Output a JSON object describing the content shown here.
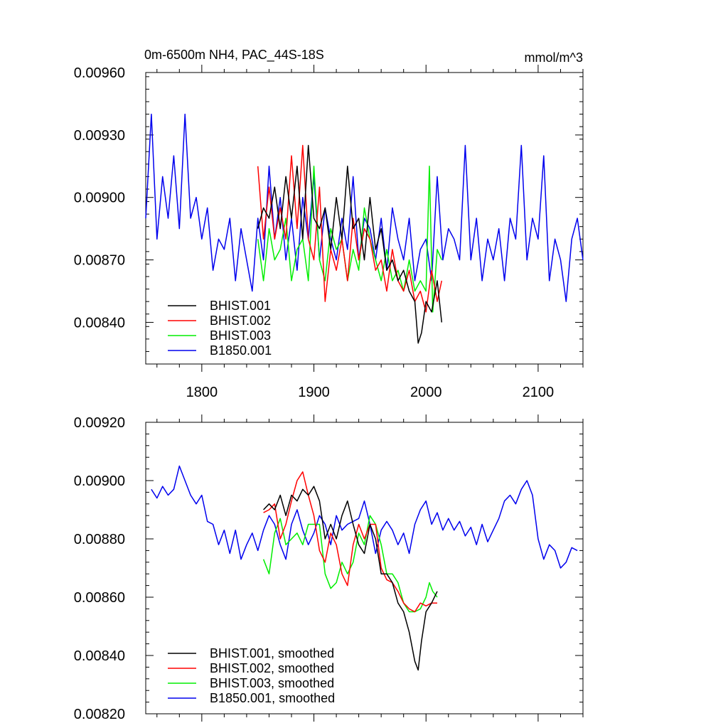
{
  "chart_data": [
    {
      "type": "line",
      "title": "0m-6500m NH4, PAC_44S-18S",
      "units": "mmol/m^3",
      "xlim": [
        1750,
        2140
      ],
      "ylim": [
        0.0082,
        0.0096
      ],
      "xticks": [
        1800,
        1900,
        2000,
        2100
      ],
      "xtick_labels": [
        "1800",
        "1900",
        "2000",
        "2100"
      ],
      "yticks": [
        0.0084,
        0.0087,
        0.009,
        0.0093,
        0.0096
      ],
      "ytick_labels": [
        "0.00840",
        "0.00870",
        "0.00900",
        "0.00930",
        "0.00960"
      ],
      "legend_position": "bottom-left",
      "series": [
        {
          "name": "BHIST.001",
          "color": "#000000",
          "x": [
            1850,
            1855,
            1860,
            1865,
            1870,
            1875,
            1880,
            1885,
            1890,
            1895,
            1900,
            1905,
            1910,
            1915,
            1920,
            1925,
            1930,
            1935,
            1940,
            1945,
            1950,
            1955,
            1960,
            1965,
            1970,
            1975,
            1980,
            1985,
            1990,
            1993,
            1996,
            2000,
            2005,
            2010,
            2014
          ],
          "y": [
            0.00885,
            0.00895,
            0.0089,
            0.00905,
            0.00885,
            0.0091,
            0.0089,
            0.00915,
            0.0088,
            0.00925,
            0.0089,
            0.00885,
            0.00895,
            0.00875,
            0.009,
            0.0088,
            0.00915,
            0.00885,
            0.0089,
            0.0087,
            0.009,
            0.00875,
            0.00885,
            0.00865,
            0.0087,
            0.0086,
            0.00865,
            0.00855,
            0.0085,
            0.0083,
            0.00835,
            0.0085,
            0.00845,
            0.0086,
            0.0084
          ]
        },
        {
          "name": "BHIST.002",
          "color": "#ff0000",
          "x": [
            1850,
            1855,
            1860,
            1865,
            1870,
            1875,
            1880,
            1885,
            1890,
            1895,
            1900,
            1905,
            1910,
            1915,
            1920,
            1925,
            1930,
            1935,
            1940,
            1945,
            1950,
            1955,
            1960,
            1965,
            1970,
            1975,
            1980,
            1985,
            1990,
            1995,
            2000,
            2005,
            2010,
            2014
          ],
          "y": [
            0.00915,
            0.0088,
            0.00905,
            0.0088,
            0.00895,
            0.0088,
            0.0092,
            0.00885,
            0.00925,
            0.0088,
            0.0087,
            0.00905,
            0.0085,
            0.00875,
            0.00865,
            0.0088,
            0.0086,
            0.0089,
            0.0087,
            0.00885,
            0.0088,
            0.00865,
            0.0087,
            0.00855,
            0.00875,
            0.0086,
            0.00855,
            0.00865,
            0.0085,
            0.00855,
            0.00845,
            0.00865,
            0.0085,
            0.0086
          ]
        },
        {
          "name": "BHIST.003",
          "color": "#00ee00",
          "x": [
            1850,
            1855,
            1860,
            1865,
            1870,
            1875,
            1880,
            1885,
            1890,
            1895,
            1900,
            1905,
            1910,
            1915,
            1920,
            1925,
            1930,
            1935,
            1940,
            1945,
            1950,
            1955,
            1960,
            1965,
            1970,
            1975,
            1980,
            1985,
            1990,
            1995,
            2000,
            2003,
            2006,
            2010,
            2014
          ],
          "y": [
            0.0088,
            0.0086,
            0.00885,
            0.0087,
            0.00875,
            0.0089,
            0.0086,
            0.00875,
            0.0088,
            0.0086,
            0.00915,
            0.0087,
            0.0086,
            0.00885,
            0.00875,
            0.0088,
            0.0086,
            0.00875,
            0.00865,
            0.00895,
            0.0088,
            0.0087,
            0.0086,
            0.00875,
            0.0086,
            0.00865,
            0.00855,
            0.0087,
            0.00855,
            0.0086,
            0.00855,
            0.00915,
            0.00845,
            0.00875,
            0.0087
          ]
        },
        {
          "name": "B1850.001",
          "color": "#0000ee",
          "x": [
            1750,
            1755,
            1760,
            1765,
            1770,
            1775,
            1780,
            1785,
            1790,
            1795,
            1800,
            1805,
            1810,
            1815,
            1820,
            1825,
            1830,
            1835,
            1840,
            1845,
            1850,
            1855,
            1860,
            1865,
            1870,
            1875,
            1880,
            1885,
            1890,
            1895,
            1900,
            1905,
            1910,
            1915,
            1920,
            1925,
            1930,
            1935,
            1940,
            1945,
            1950,
            1955,
            1960,
            1965,
            1970,
            1975,
            1980,
            1985,
            1990,
            1995,
            2000,
            2005,
            2010,
            2015,
            2020,
            2025,
            2030,
            2035,
            2040,
            2045,
            2050,
            2055,
            2060,
            2065,
            2070,
            2075,
            2080,
            2085,
            2090,
            2095,
            2100,
            2105,
            2110,
            2115,
            2120,
            2125,
            2130,
            2135,
            2140
          ],
          "y": [
            0.0089,
            0.0094,
            0.0088,
            0.0091,
            0.0089,
            0.0092,
            0.00885,
            0.0094,
            0.0089,
            0.009,
            0.0088,
            0.00895,
            0.00865,
            0.0088,
            0.00875,
            0.0089,
            0.0086,
            0.00885,
            0.0087,
            0.00855,
            0.0089,
            0.0087,
            0.00915,
            0.0088,
            0.009,
            0.0087,
            0.0089,
            0.00865,
            0.009,
            0.0088,
            0.0091,
            0.0087,
            0.00895,
            0.0088,
            0.0087,
            0.0089,
            0.00875,
            0.0091,
            0.0087,
            0.0089,
            0.00885,
            0.0087,
            0.0089,
            0.00865,
            0.00895,
            0.0088,
            0.0087,
            0.0089,
            0.0086,
            0.00875,
            0.0088,
            0.0086,
            0.0091,
            0.0087,
            0.00885,
            0.0088,
            0.0087,
            0.00925,
            0.0087,
            0.0089,
            0.0086,
            0.0088,
            0.0087,
            0.00885,
            0.0086,
            0.0089,
            0.0088,
            0.00925,
            0.0087,
            0.0089,
            0.0088,
            0.0092,
            0.0086,
            0.0088,
            0.0087,
            0.0085,
            0.0088,
            0.0089,
            0.0087
          ]
        }
      ]
    },
    {
      "type": "line",
      "title": "",
      "xlim": [
        1750,
        2140
      ],
      "ylim": [
        0.0082,
        0.0092
      ],
      "xticks": [
        1800,
        1900,
        2000,
        2100
      ],
      "xtick_labels": [],
      "yticks": [
        0.0082,
        0.0084,
        0.0086,
        0.0088,
        0.009,
        0.0092
      ],
      "ytick_labels": [
        "0.00820",
        "0.00840",
        "0.00860",
        "0.00880",
        "0.00900",
        "0.00920"
      ],
      "legend_position": "bottom-left",
      "series": [
        {
          "name": "BHIST.001, smoothed",
          "color": "#000000",
          "x": [
            1855,
            1860,
            1865,
            1870,
            1875,
            1880,
            1885,
            1890,
            1895,
            1900,
            1905,
            1910,
            1915,
            1920,
            1925,
            1930,
            1935,
            1940,
            1945,
            1950,
            1955,
            1960,
            1965,
            1970,
            1975,
            1980,
            1985,
            1990,
            1993,
            1996,
            2000,
            2005,
            2010
          ],
          "y": [
            0.0089,
            0.00892,
            0.0089,
            0.00895,
            0.00888,
            0.00895,
            0.00893,
            0.00897,
            0.00895,
            0.00898,
            0.00893,
            0.0088,
            0.00885,
            0.0088,
            0.00888,
            0.00893,
            0.00885,
            0.00878,
            0.00875,
            0.00885,
            0.0088,
            0.00868,
            0.00868,
            0.00865,
            0.00858,
            0.00855,
            0.00848,
            0.00838,
            0.00835,
            0.00845,
            0.00855,
            0.00858,
            0.00862
          ]
        },
        {
          "name": "BHIST.002, smoothed",
          "color": "#ff0000",
          "x": [
            1855,
            1860,
            1865,
            1870,
            1875,
            1880,
            1885,
            1890,
            1895,
            1900,
            1905,
            1910,
            1915,
            1920,
            1925,
            1930,
            1935,
            1940,
            1945,
            1950,
            1955,
            1960,
            1965,
            1970,
            1975,
            1980,
            1985,
            1990,
            1995,
            2000,
            2005,
            2010
          ],
          "y": [
            0.00889,
            0.0089,
            0.00892,
            0.0088,
            0.00885,
            0.00893,
            0.009,
            0.00903,
            0.00895,
            0.00888,
            0.00876,
            0.00872,
            0.00882,
            0.00878,
            0.00868,
            0.00864,
            0.00878,
            0.00885,
            0.0088,
            0.00885,
            0.00885,
            0.0087,
            0.00866,
            0.00865,
            0.00862,
            0.00858,
            0.00856,
            0.00855,
            0.00858,
            0.00857,
            0.00858,
            0.00858
          ]
        },
        {
          "name": "BHIST.003, smoothed",
          "color": "#00ee00",
          "x": [
            1855,
            1860,
            1865,
            1870,
            1875,
            1880,
            1885,
            1890,
            1895,
            1900,
            1905,
            1910,
            1915,
            1920,
            1925,
            1930,
            1935,
            1940,
            1945,
            1950,
            1955,
            1960,
            1965,
            1970,
            1975,
            1980,
            1985,
            1990,
            1995,
            2000,
            2003,
            2006,
            2010
          ],
          "y": [
            0.00873,
            0.00868,
            0.00882,
            0.00887,
            0.00878,
            0.0088,
            0.00882,
            0.00878,
            0.00885,
            0.00885,
            0.00885,
            0.00868,
            0.00863,
            0.00865,
            0.00872,
            0.00868,
            0.00872,
            0.00882,
            0.00878,
            0.00888,
            0.00885,
            0.00878,
            0.00868,
            0.00868,
            0.00865,
            0.00858,
            0.00855,
            0.00855,
            0.00856,
            0.0086,
            0.00865,
            0.00862,
            0.0086
          ]
        },
        {
          "name": "B1850.001, smoothed",
          "color": "#0000ee",
          "x": [
            1755,
            1760,
            1765,
            1770,
            1775,
            1780,
            1785,
            1790,
            1795,
            1800,
            1805,
            1810,
            1815,
            1820,
            1825,
            1830,
            1835,
            1840,
            1845,
            1850,
            1855,
            1860,
            1865,
            1870,
            1875,
            1880,
            1885,
            1890,
            1895,
            1900,
            1905,
            1910,
            1915,
            1920,
            1925,
            1930,
            1935,
            1940,
            1945,
            1950,
            1955,
            1960,
            1965,
            1970,
            1975,
            1980,
            1985,
            1990,
            1995,
            2000,
            2005,
            2010,
            2015,
            2020,
            2025,
            2030,
            2035,
            2040,
            2045,
            2050,
            2055,
            2060,
            2065,
            2070,
            2075,
            2080,
            2085,
            2090,
            2095,
            2100,
            2105,
            2110,
            2115,
            2120,
            2125,
            2130,
            2135
          ],
          "y": [
            0.00897,
            0.00894,
            0.00898,
            0.00895,
            0.00897,
            0.00905,
            0.009,
            0.00895,
            0.00892,
            0.00895,
            0.00886,
            0.00885,
            0.00878,
            0.00883,
            0.00875,
            0.00883,
            0.00873,
            0.00878,
            0.00882,
            0.00876,
            0.00883,
            0.00888,
            0.00885,
            0.00878,
            0.00873,
            0.00885,
            0.0089,
            0.00883,
            0.00878,
            0.00882,
            0.00888,
            0.00885,
            0.00878,
            0.00888,
            0.00883,
            0.00885,
            0.00886,
            0.00887,
            0.00893,
            0.00885,
            0.00875,
            0.00883,
            0.00886,
            0.00883,
            0.00878,
            0.00882,
            0.00875,
            0.00885,
            0.0089,
            0.00893,
            0.00885,
            0.00889,
            0.00883,
            0.00887,
            0.00883,
            0.00886,
            0.00881,
            0.00884,
            0.00878,
            0.00885,
            0.00879,
            0.00883,
            0.00887,
            0.00893,
            0.00895,
            0.00892,
            0.00897,
            0.009,
            0.00895,
            0.0088,
            0.00873,
            0.00878,
            0.00876,
            0.0087,
            0.00872,
            0.00877,
            0.00876
          ]
        }
      ]
    }
  ]
}
